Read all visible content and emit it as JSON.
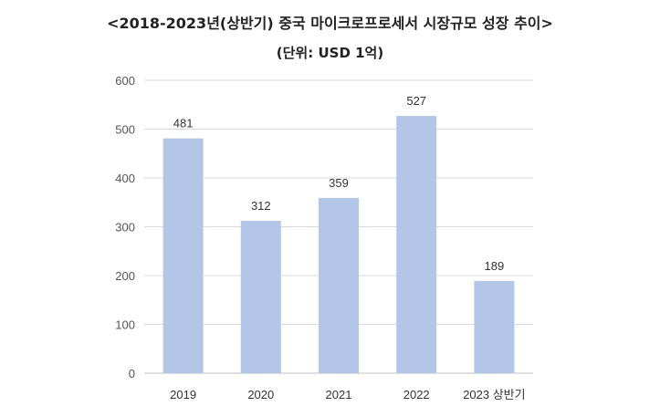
{
  "chart_data": {
    "type": "bar",
    "title": "<2018-2023년(상반기) 중국 마이크로프로세서 시장규모 성장 추이>",
    "subtitle": "(단위: USD 1억)",
    "categories": [
      "2019",
      "2020",
      "2021",
      "2022",
      "2023 상반기"
    ],
    "values": [
      481,
      312,
      359,
      527,
      189
    ],
    "data_labels": [
      "481",
      "312",
      "359",
      "527",
      "189"
    ],
    "y_ticks": [
      "0",
      "100",
      "200",
      "300",
      "400",
      "500",
      "600"
    ],
    "ylim": [
      0,
      600
    ],
    "xlabel": "",
    "ylabel": "",
    "grid": true,
    "bar_color": "#b4c6e7",
    "grid_color": "#d9d9d9"
  }
}
